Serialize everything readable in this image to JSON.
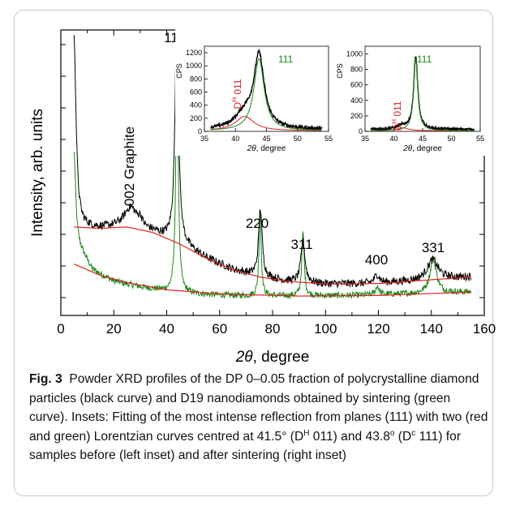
{
  "chart_data": {
    "main": {
      "type": "line",
      "xlabel_sym": "2θ",
      "xlabel_unit": ", degree",
      "ylabel": "Intensity, arb. units",
      "xlim": [
        0,
        160
      ],
      "xticks": [
        0,
        20,
        40,
        60,
        80,
        100,
        120,
        140,
        160
      ],
      "series": [
        {
          "color": "#000000",
          "baseline": [
            [
              5,
              0.31
            ],
            [
              15,
              0.305
            ],
            [
              25,
              0.31
            ],
            [
              35,
              0.29
            ],
            [
              45,
              0.25
            ],
            [
              55,
              0.2
            ],
            [
              65,
              0.16
            ],
            [
              75,
              0.135
            ],
            [
              85,
              0.12
            ],
            [
              100,
              0.11
            ],
            [
              120,
              0.112
            ],
            [
              140,
              0.125
            ],
            [
              155,
              0.135
            ]
          ],
          "peaks": [
            {
              "x": 5.0,
              "h": 0.66,
              "w": 0.9
            },
            {
              "x": 26.5,
              "h": 0.07,
              "w": 3.0
            },
            {
              "x": 30.0,
              "h": 0.025,
              "w": 0.8
            },
            {
              "x": 43.8,
              "h": 0.78,
              "w": 0.8
            },
            {
              "x": 75.4,
              "h": 0.24,
              "w": 0.8
            },
            {
              "x": 91.5,
              "h": 0.145,
              "w": 0.9
            },
            {
              "x": 119.5,
              "h": 0.03,
              "w": 1.2
            },
            {
              "x": 140.5,
              "h": 0.07,
              "w": 2.5
            }
          ]
        },
        {
          "color": "#1a8a1a",
          "baseline": [
            [
              5,
              0.27
            ],
            [
              12,
              0.16
            ],
            [
              20,
              0.12
            ],
            [
              30,
              0.1
            ],
            [
              40,
              0.085
            ],
            [
              50,
              0.075
            ],
            [
              70,
              0.068
            ],
            [
              90,
              0.068
            ],
            [
              110,
              0.07
            ],
            [
              130,
              0.075
            ],
            [
              155,
              0.082
            ]
          ],
          "peaks": [
            {
              "x": 5.0,
              "h": 0.3,
              "w": 0.7
            },
            {
              "x": 43.9,
              "h": 0.83,
              "w": 0.55
            },
            {
              "x": 75.3,
              "h": 0.3,
              "w": 0.5
            },
            {
              "x": 91.5,
              "h": 0.22,
              "w": 0.55
            },
            {
              "x": 119.6,
              "h": 0.03,
              "w": 0.8
            },
            {
              "x": 140.7,
              "h": 0.12,
              "w": 1.5
            }
          ]
        },
        {
          "color": "#e02020",
          "role": "background fit (black)",
          "points": [
            [
              5,
              0.31
            ],
            [
              15,
              0.305
            ],
            [
              25,
              0.31
            ],
            [
              35,
              0.29
            ],
            [
              45,
              0.25
            ],
            [
              55,
              0.2
            ],
            [
              65,
              0.16
            ],
            [
              75,
              0.135
            ],
            [
              85,
              0.12
            ],
            [
              100,
              0.11
            ],
            [
              120,
              0.112
            ],
            [
              140,
              0.125
            ],
            [
              155,
              0.135
            ]
          ]
        },
        {
          "color": "#e02020",
          "role": "background fit (green)",
          "points": [
            [
              5,
              0.18
            ],
            [
              15,
              0.14
            ],
            [
              25,
              0.115
            ],
            [
              40,
              0.09
            ],
            [
              60,
              0.075
            ],
            [
              90,
              0.068
            ],
            [
              120,
              0.07
            ],
            [
              155,
              0.082
            ]
          ]
        }
      ],
      "annotations": [
        "111",
        "002 Graphite",
        "220",
        "311",
        "400",
        "331"
      ]
    },
    "insets": [
      {
        "type": "line",
        "ylabel": "CPS",
        "xlabel_sym": "2θ",
        "xlabel_unit": ", degree",
        "xlim": [
          35,
          55
        ],
        "xticks": [
          35,
          40,
          45,
          50,
          55
        ],
        "ylim": [
          0,
          1300
        ],
        "yticks": [
          0,
          200,
          400,
          600,
          800,
          1000,
          1200
        ],
        "labels": [
          "111",
          "011"
        ],
        "label_sup": "H",
        "label_d": "D",
        "fits": [
          {
            "name": "D^H 011",
            "center": 41.5,
            "amp": 220,
            "hwhm": 1.8,
            "color": "#e02020"
          },
          {
            "name": "D^c 111",
            "center": 43.8,
            "amp": 1100,
            "hwhm": 1.0,
            "color": "#1a8a1a"
          }
        ],
        "baseline": 30
      },
      {
        "type": "line",
        "ylabel": "CPS",
        "xlabel_sym": "2θ",
        "xlabel_unit": ", degree",
        "xlim": [
          35,
          55
        ],
        "xticks": [
          35,
          40,
          45,
          50,
          55
        ],
        "ylim": [
          0,
          1100
        ],
        "yticks": [
          0,
          200,
          400,
          600,
          800,
          1000
        ],
        "labels": [
          "111",
          "011"
        ],
        "label_sup": "H",
        "label_d": "D",
        "fits": [
          {
            "name": "D^H 011",
            "center": 41.5,
            "amp": 40,
            "hwhm": 1.2,
            "color": "#e02020"
          },
          {
            "name": "D^c 111",
            "center": 43.8,
            "amp": 940,
            "hwhm": 0.42,
            "color": "#1a8a1a"
          }
        ],
        "baseline": 25
      }
    ]
  },
  "caption": {
    "label": "Fig. 3",
    "text_1": "Powder XRD profiles of the DP 0–0.05 fraction of polycrystalline diamond particles (black curve) and D19 nanodiamonds obtained by sintering (green curve). Insets: Fitting of the most intense reflection from planes (111) with two (red and green) Lorentzian curves centred at 41.5° (D",
    "sup_1": "H",
    "text_2": " 011) and 43.8",
    "sup_2": "o",
    "text_3": " (D",
    "sup_3": "c",
    "text_4": " 111) for samples before (left inset) and after sintering (right inset)"
  }
}
